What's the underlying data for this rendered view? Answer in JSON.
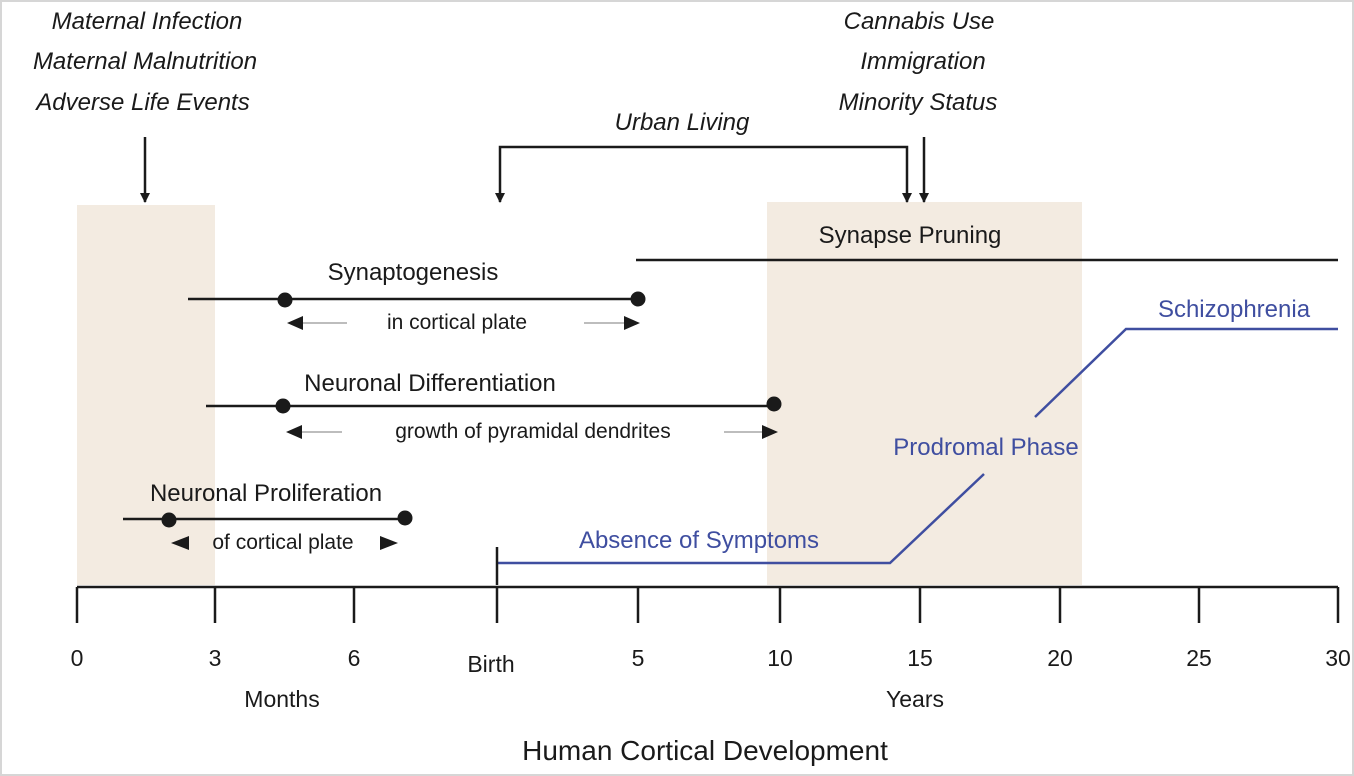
{
  "title": "Human Cortical Development",
  "colors": {
    "shade": "#f3ebe1",
    "line": "#1a1a1a",
    "course": "#3f4ea0",
    "minor_arrow": "#bdbdbd"
  },
  "risk_factors": {
    "prenatal": [
      "Maternal Infection",
      "Maternal Malnutrition",
      "Adverse Life Events"
    ],
    "adolescent": [
      "Cannabis Use",
      "Immigration",
      "Minority Status"
    ],
    "urban": "Urban Living"
  },
  "processes": {
    "synapse_pruning": "Synapse Pruning",
    "synaptogenesis": {
      "label": "Synaptogenesis",
      "sub": "in cortical plate"
    },
    "differentiation": {
      "label": "Neuronal Differentiation",
      "sub": "growth of pyramidal dendrites"
    },
    "proliferation": {
      "label": "Neuronal Proliferation",
      "sub": "of cortical plate"
    }
  },
  "illness_course": {
    "absence": "Absence of Symptoms",
    "prodromal": "Prodromal Phase",
    "schizophrenia": "Schizophrenia"
  },
  "axis": {
    "month_ticks": [
      "0",
      "3",
      "6"
    ],
    "birth": "Birth",
    "year_ticks": [
      "5",
      "10",
      "15",
      "20",
      "25",
      "30"
    ],
    "months_label": "Months",
    "years_label": "Years"
  }
}
